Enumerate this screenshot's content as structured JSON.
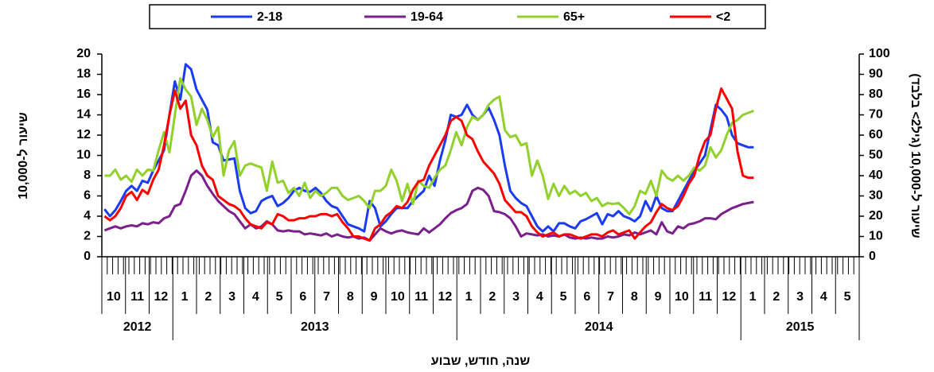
{
  "chart_data": {
    "type": "line",
    "x_label": "שנה, חודש, שבוע",
    "y_label": "שיעור ל-10,000",
    "y2_label": "שיעור ל-10,000 (גיל2> בלבד)",
    "categories": [
      null,
      null,
      null,
      null,
      null,
      null,
      null,
      null,
      null,
      null,
      null,
      null,
      null,
      null,
      null,
      null,
      null,
      null,
      null,
      null,
      null,
      null,
      null,
      null,
      null,
      null,
      null,
      null,
      null,
      null,
      null,
      null,
      null,
      null,
      null,
      null,
      null,
      null,
      null,
      null,
      null,
      null,
      null,
      null,
      null,
      null,
      null,
      null,
      null,
      null,
      null,
      null,
      null,
      null,
      null,
      null,
      null,
      null,
      null,
      null,
      null,
      null,
      null,
      null,
      null,
      null,
      null,
      null,
      null,
      null,
      null,
      null,
      null,
      null,
      null,
      null,
      null,
      null,
      null,
      null,
      null,
      null,
      null,
      null,
      null,
      null,
      null,
      null,
      null,
      null,
      null,
      null,
      null,
      null,
      null,
      null,
      null,
      null,
      null,
      null,
      null,
      null,
      null,
      null,
      null,
      null,
      null,
      null,
      null,
      null,
      null,
      null,
      null,
      null,
      null,
      null,
      null,
      null,
      null,
      null,
      null,
      null,
      null,
      null,
      null,
      null,
      null,
      null,
      null,
      null,
      null,
      null,
      null,
      null,
      null,
      null,
      null,
      null,
      null,
      null
    ],
    "month_labels": [
      "10",
      "11",
      "12",
      "1",
      "2",
      "3",
      "4",
      "5",
      "6",
      "7",
      "8",
      "9",
      "10",
      "11",
      "12",
      "1",
      "2",
      "3",
      "4",
      "5",
      "6",
      "7",
      "8",
      "9",
      "10",
      "11",
      "12",
      "1",
      "2",
      "3",
      "4",
      "5"
    ],
    "year_labels": [
      "2012",
      "2013",
      "2014",
      "2015"
    ],
    "ylim": [
      0,
      20
    ],
    "yticks": [
      0,
      2,
      4,
      6,
      8,
      10,
      12,
      14,
      16,
      18,
      20
    ],
    "y2lim": [
      0,
      100
    ],
    "y2ticks": [
      0,
      10,
      20,
      30,
      40,
      50,
      60,
      70,
      80,
      90,
      100
    ],
    "series": [
      {
        "name": "2-18",
        "color": "#1a3cf0",
        "values": [
          4.7,
          4.0,
          4.6,
          5.5,
          6.5,
          7.0,
          6.5,
          7.5,
          7.3,
          8.5,
          9.5,
          10.5,
          14.0,
          17.3,
          15.5,
          19.0,
          18.5,
          16.5,
          15.5,
          14.5,
          11.3,
          11.0,
          9.5,
          9.6,
          9.7,
          6.5,
          4.8,
          4.3,
          4.5,
          5.5,
          5.8,
          6.0,
          5.0,
          5.3,
          5.8,
          6.5,
          6.8,
          6.5,
          6.4,
          6.8,
          6.3,
          5.5,
          5.0,
          4.8,
          4.0,
          3.2,
          3.0,
          2.8,
          2.5,
          5.5,
          4.8,
          3.0,
          3.5,
          4.2,
          4.8,
          4.8,
          4.8,
          5.5,
          6.0,
          6.5,
          8.0,
          7.0,
          9.5,
          11.5,
          14.0,
          13.8,
          14.0,
          15.0,
          14.0,
          13.5,
          14.0,
          14.7,
          13.5,
          12.0,
          9.0,
          6.5,
          5.8,
          5.3,
          5.0,
          4.0,
          3.0,
          2.5,
          3.0,
          2.5,
          3.3,
          3.3,
          3.0,
          2.8,
          3.5,
          3.7,
          4.0,
          4.3,
          3.2,
          4.2,
          4.0,
          4.5,
          4.0,
          3.8,
          3.5,
          4.0,
          5.5,
          4.5,
          6.0,
          4.8,
          4.5,
          4.5,
          5.5,
          6.5,
          7.5,
          8.5,
          9.2,
          10.0,
          12.5,
          15.0,
          14.5,
          13.8,
          12.0,
          11.2,
          11.0,
          10.8,
          10.8,
          null,
          null,
          null,
          null,
          null,
          null,
          null,
          null,
          null,
          null,
          null,
          null,
          null,
          null,
          null,
          null,
          null,
          null,
          null
        ]
      },
      {
        "name": "19-64",
        "color": "#7b1f8c",
        "values": [
          2.6,
          2.8,
          3.0,
          2.8,
          3.0,
          3.1,
          3.0,
          3.3,
          3.2,
          3.4,
          3.3,
          3.8,
          4.0,
          5.0,
          5.2,
          6.5,
          8.0,
          8.5,
          8.0,
          7.0,
          6.2,
          5.5,
          5.0,
          4.5,
          4.2,
          3.5,
          2.8,
          3.2,
          2.8,
          3.0,
          3.5,
          3.2,
          2.6,
          2.5,
          2.6,
          2.5,
          2.5,
          2.2,
          2.3,
          2.2,
          2.1,
          2.3,
          2.0,
          2.2,
          2.0,
          1.9,
          2.0,
          1.8,
          1.9,
          1.6,
          2.2,
          2.8,
          2.5,
          2.3,
          2.5,
          2.6,
          2.4,
          2.3,
          2.2,
          2.8,
          2.4,
          2.8,
          3.2,
          3.8,
          4.3,
          4.6,
          4.8,
          5.2,
          6.5,
          6.8,
          6.6,
          6.0,
          4.5,
          4.4,
          4.2,
          3.8,
          3.0,
          2.0,
          2.3,
          2.2,
          2.1,
          2.2,
          2.0,
          2.1,
          2.0,
          2.2,
          1.9,
          1.8,
          1.9,
          1.8,
          1.9,
          1.8,
          1.8,
          2.0,
          1.9,
          2.0,
          2.2,
          2.1,
          2.4,
          2.2,
          2.4,
          2.6,
          2.2,
          3.4,
          2.5,
          2.3,
          3.0,
          2.8,
          3.2,
          3.3,
          3.5,
          3.8,
          3.8,
          3.7,
          4.2,
          4.5,
          4.8,
          5.0,
          5.2,
          5.3,
          5.4,
          null,
          null,
          null,
          null,
          null,
          null,
          null,
          null,
          null,
          null,
          null,
          null,
          null,
          null,
          null,
          null,
          null,
          null,
          null
        ]
      },
      {
        "name": "65+",
        "color": "#92d02c",
        "values": [
          8.0,
          8.0,
          8.6,
          7.6,
          8.0,
          7.4,
          8.6,
          8.0,
          8.6,
          8.5,
          10.5,
          12.3,
          10.3,
          14.0,
          17.6,
          16.5,
          15.8,
          13.0,
          14.6,
          13.5,
          11.8,
          12.8,
          8.0,
          10.5,
          11.4,
          8.0,
          9.0,
          9.2,
          9.0,
          8.8,
          6.5,
          9.4,
          7.3,
          7.5,
          6.3,
          6.8,
          6.0,
          7.3,
          5.8,
          6.5,
          6.0,
          6.3,
          6.8,
          6.8,
          6.0,
          5.6,
          5.8,
          6.0,
          5.5,
          4.8,
          6.5,
          6.5,
          7.0,
          8.6,
          7.5,
          5.5,
          7.2,
          5.2,
          7.5,
          7.0,
          6.8,
          7.8,
          8.6,
          9.0,
          10.5,
          12.3,
          11.0,
          12.8,
          13.8,
          13.5,
          14.0,
          15.0,
          15.5,
          15.8,
          12.5,
          11.8,
          12.0,
          11.0,
          11.2,
          8.0,
          9.5,
          8.0,
          5.7,
          7.2,
          6.0,
          7.0,
          6.2,
          6.5,
          6.0,
          6.3,
          5.5,
          5.8,
          5.0,
          5.3,
          5.2,
          5.3,
          4.8,
          4.2,
          5.0,
          6.5,
          6.2,
          7.5,
          6.0,
          8.5,
          7.8,
          7.5,
          8.0,
          7.5,
          8.0,
          8.8,
          8.5,
          9.0,
          10.8,
          9.8,
          10.5,
          12.0,
          13.2,
          13.5,
          14.0,
          14.2,
          14.4,
          null,
          null,
          null,
          null,
          null,
          null,
          null,
          null,
          null,
          null,
          null,
          null,
          null,
          null,
          null,
          null,
          null,
          null,
          null
        ]
      },
      {
        "name": "<2",
        "color": "#ff0000",
        "axis": "y2",
        "values": [
          20,
          18,
          20,
          24,
          30,
          32,
          28,
          33,
          31,
          38,
          43,
          55,
          70,
          82,
          73,
          77,
          60,
          55,
          45,
          40,
          38,
          30,
          28,
          26,
          25,
          23,
          19,
          16,
          15,
          14,
          17,
          16,
          21,
          20,
          18,
          18,
          19,
          19,
          20,
          20,
          21,
          21,
          20,
          21,
          17,
          14,
          10,
          10,
          9,
          8,
          14,
          16,
          20,
          22,
          25,
          24,
          27,
          33,
          37,
          38,
          45,
          50,
          55,
          60,
          67,
          69,
          67,
          60,
          58,
          52,
          47,
          44,
          41,
          36,
          28,
          25,
          22,
          22,
          20,
          15,
          12,
          10,
          11,
          12,
          10,
          11,
          11,
          10,
          9,
          10,
          11,
          11,
          10,
          12,
          13,
          11,
          12,
          13,
          9,
          12,
          15,
          17,
          22,
          26,
          24,
          23,
          25,
          30,
          36,
          40,
          50,
          57,
          60,
          73,
          83,
          78,
          73,
          52,
          40,
          39,
          39,
          null,
          null,
          null,
          null,
          null,
          null,
          null,
          null,
          null,
          null,
          null,
          null,
          null,
          null,
          null,
          null,
          null,
          null,
          null
        ]
      }
    ]
  }
}
